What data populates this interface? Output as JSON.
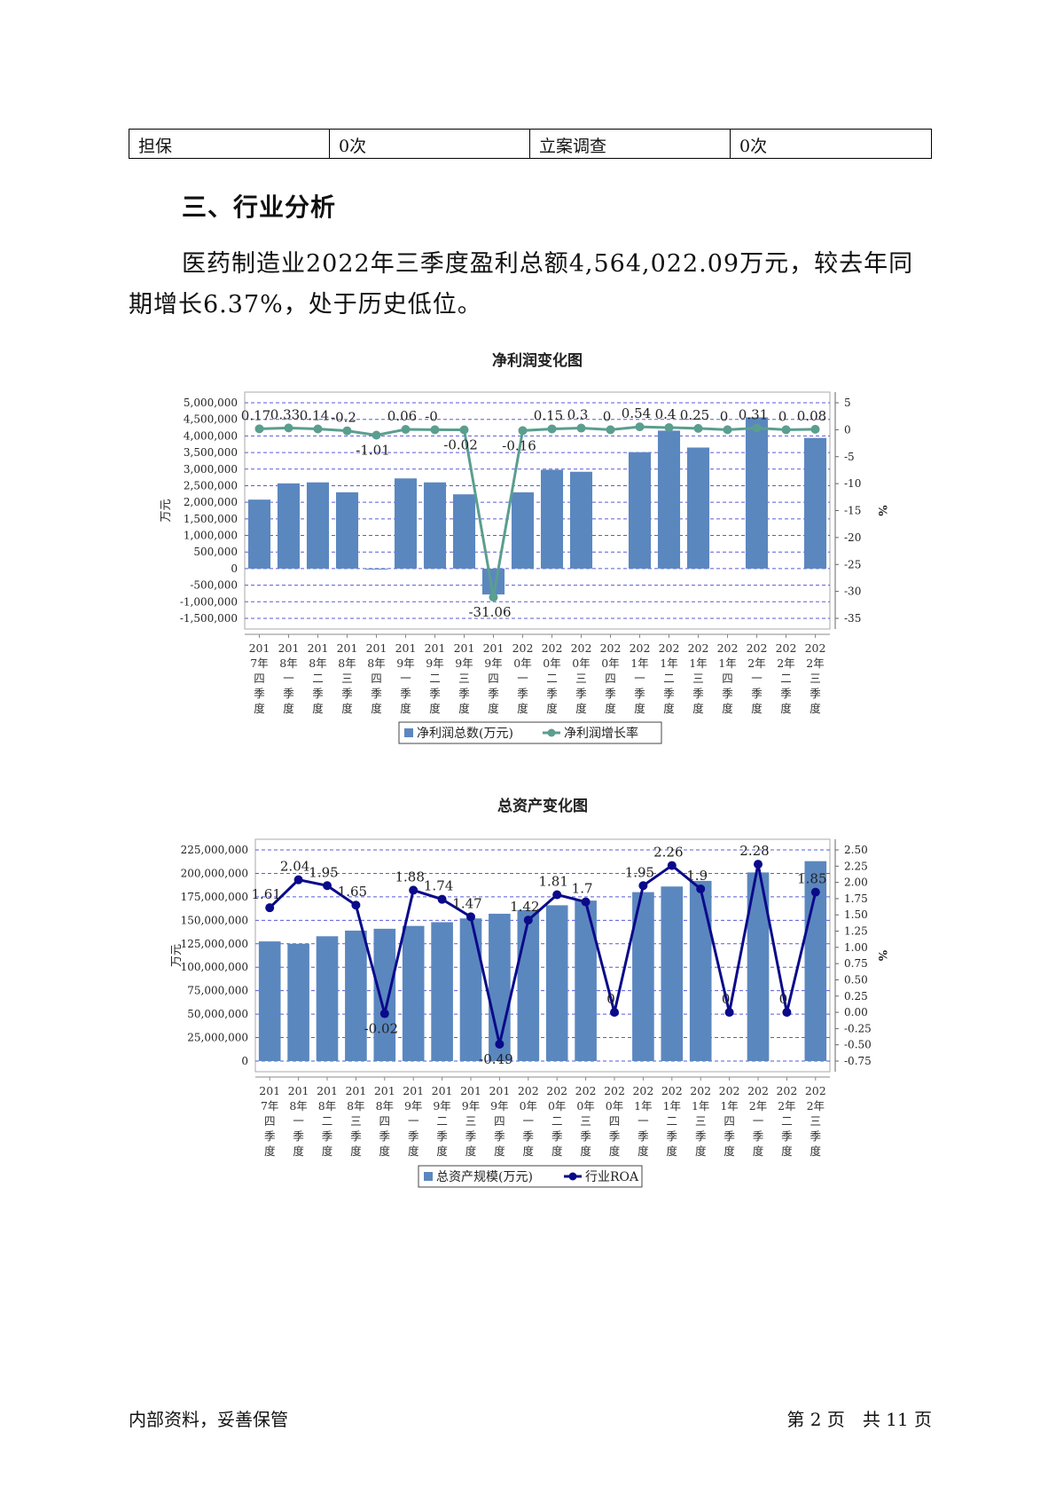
{
  "table": {
    "row": [
      "担保",
      "0次",
      "立案调查",
      "0次"
    ]
  },
  "section_title": "三、行业分析",
  "paragraph": "医药制造业2022年三季度盈利总额4,564,022.09万元，较去年同期增长6.37%，处于历史低位。",
  "footer": {
    "left": "内部资料，妥善保管",
    "right": "第 2 页　共 11 页"
  },
  "chart_data": [
    {
      "type": "bar",
      "title": "净利润变化图",
      "ylabel": "万元",
      "y2label": "%",
      "categories": [
        "2017年四季度",
        "2018年一季度",
        "2018年二季度",
        "2018年三季度",
        "2018年四季度",
        "2019年一季度",
        "2019年二季度",
        "2019年三季度",
        "2019年四季度",
        "2020年一季度",
        "2020年二季度",
        "2020年三季度",
        "2020年四季度",
        "2021年一季度",
        "2021年二季度",
        "2021年三季度",
        "2021年四季度",
        "2022年一季度",
        "2022年二季度",
        "2022年三季度"
      ],
      "series": [
        {
          "name": "净利润总数(万元)",
          "type": "bar",
          "axis": "left",
          "values": [
            2080000,
            2570000,
            2600000,
            2300000,
            -20000,
            2720000,
            2600000,
            2240000,
            -780000,
            2300000,
            2980000,
            2920000,
            0,
            3510000,
            4160000,
            3650000,
            0,
            4560000,
            0,
            3940000
          ]
        },
        {
          "name": "净利润增长率",
          "type": "line",
          "axis": "right",
          "values": [
            0.17,
            0.33,
            0.14,
            -0.2,
            -1.01,
            0.06,
            0,
            -0.02,
            -31.06,
            -0.16,
            0.15,
            0.3,
            0,
            0.54,
            0.4,
            0.25,
            0,
            0.31,
            0,
            0.08
          ]
        }
      ],
      "point_labels": [
        "0.17",
        "0.33",
        "0.14",
        "-0.2",
        "-1.01",
        "0.06",
        "-0",
        "-0.02",
        "-31.06",
        "-0.16",
        "0.15",
        "0.3",
        "0",
        "0.54",
        "0.4",
        "0.25",
        "0",
        "0.31",
        "0",
        "0.08"
      ],
      "ylim": [
        -1500000,
        5000000
      ],
      "y_ticks": [
        "5,000,000",
        "4,500,000",
        "4,000,000",
        "3,500,000",
        "3,000,000",
        "2,500,000",
        "2,000,000",
        "1,500,000",
        "1,000,000",
        "500,000",
        "0",
        "-500,000",
        "-1,000,000",
        "-1,500,000"
      ],
      "y2lim": [
        -35,
        5
      ],
      "y2_ticks": [
        "5",
        "0",
        "-5",
        "-10",
        "-15",
        "-20",
        "-25",
        "-30",
        "-35"
      ],
      "x_ticks": [
        [
          "201",
          "7年",
          "四",
          "季",
          "度"
        ],
        [
          "201",
          "8年",
          "一",
          "季",
          "度"
        ],
        [
          "201",
          "8年",
          "二",
          "季",
          "度"
        ],
        [
          "201",
          "8年",
          "三",
          "季",
          "度"
        ],
        [
          "201",
          "8年",
          "四",
          "季",
          "度"
        ],
        [
          "201",
          "9年",
          "一",
          "季",
          "度"
        ],
        [
          "201",
          "9年",
          "二",
          "季",
          "度"
        ],
        [
          "201",
          "9年",
          "三",
          "季",
          "度"
        ],
        [
          "201",
          "9年",
          "四",
          "季",
          "度"
        ],
        [
          "202",
          "0年",
          "一",
          "季",
          "度"
        ],
        [
          "202",
          "0年",
          "二",
          "季",
          "度"
        ],
        [
          "202",
          "0年",
          "三",
          "季",
          "度"
        ],
        [
          "202",
          "0年",
          "四",
          "季",
          "度"
        ],
        [
          "202",
          "1年",
          "一",
          "季",
          "度"
        ],
        [
          "202",
          "1年",
          "二",
          "季",
          "度"
        ],
        [
          "202",
          "1年",
          "三",
          "季",
          "度"
        ],
        [
          "202",
          "1年",
          "四",
          "季",
          "度"
        ],
        [
          "202",
          "2年",
          "一",
          "季",
          "度"
        ],
        [
          "202",
          "2年",
          "二",
          "季",
          "度"
        ],
        [
          "202",
          "2年",
          "三",
          "季",
          "度"
        ]
      ],
      "legend": [
        "净利润总数(万元)",
        "净利润增长率"
      ],
      "legend_position": "bottom",
      "colors": {
        "bar": "#5b87bf",
        "line": "#5a9e8f",
        "grid": "#5a5ad8"
      },
      "grid": true
    },
    {
      "type": "bar",
      "title": "总资产变化图",
      "ylabel": "万元",
      "y2label": "%",
      "categories": [
        "2017年四季度",
        "2018年一季度",
        "2018年二季度",
        "2018年三季度",
        "2018年四季度",
        "2019年一季度",
        "2019年二季度",
        "2019年三季度",
        "2019年四季度",
        "2020年一季度",
        "2020年二季度",
        "2020年三季度",
        "2020年四季度",
        "2021年一季度",
        "2021年二季度",
        "2021年三季度",
        "2021年四季度",
        "2022年一季度",
        "2022年二季度",
        "2022年三季度"
      ],
      "series": [
        {
          "name": "总资产规模(万元)",
          "type": "bar",
          "axis": "left",
          "values": [
            127500000,
            125000000,
            133000000,
            139000000,
            141000000,
            144000000,
            148000000,
            152000000,
            157000000,
            161000000,
            166000000,
            171000000,
            0,
            180000000,
            186000000,
            192000000,
            0,
            201000000,
            0,
            213000000
          ]
        },
        {
          "name": "行业ROA",
          "type": "line",
          "axis": "right",
          "values": [
            1.61,
            2.04,
            1.95,
            1.65,
            -0.02,
            1.88,
            1.74,
            1.47,
            -0.49,
            1.42,
            1.81,
            1.7,
            0,
            1.95,
            2.26,
            1.9,
            0,
            2.28,
            0,
            1.85
          ]
        }
      ],
      "point_labels": [
        "1.61",
        "2.04",
        "1.95",
        "1.65",
        "-0.02",
        "1.88",
        "1.74",
        "1.47",
        "-0.49",
        "1.42",
        "1.81",
        "1.7",
        "0",
        "1.95",
        "2.26",
        "1.9",
        "0",
        "2.28",
        "0",
        "1.85"
      ],
      "ylim": [
        0,
        225000000
      ],
      "y_ticks": [
        "225,000,000",
        "200,000,000",
        "175,000,000",
        "150,000,000",
        "125,000,000",
        "100,000,000",
        "75,000,000",
        "50,000,000",
        "25,000,000",
        "0"
      ],
      "y2lim": [
        -0.75,
        2.5
      ],
      "y2_ticks": [
        "2.50",
        "2.25",
        "2.00",
        "1.75",
        "1.50",
        "1.25",
        "1.00",
        "0.75",
        "0.50",
        "0.25",
        "0.00",
        "-0.25",
        "-0.50",
        "-0.75"
      ],
      "x_ticks": [
        [
          "201",
          "7年",
          "四",
          "季",
          "度"
        ],
        [
          "201",
          "8年",
          "一",
          "季",
          "度"
        ],
        [
          "201",
          "8年",
          "二",
          "季",
          "度"
        ],
        [
          "201",
          "8年",
          "三",
          "季",
          "度"
        ],
        [
          "201",
          "8年",
          "四",
          "季",
          "度"
        ],
        [
          "201",
          "9年",
          "一",
          "季",
          "度"
        ],
        [
          "201",
          "9年",
          "二",
          "季",
          "度"
        ],
        [
          "201",
          "9年",
          "三",
          "季",
          "度"
        ],
        [
          "201",
          "9年",
          "四",
          "季",
          "度"
        ],
        [
          "202",
          "0年",
          "一",
          "季",
          "度"
        ],
        [
          "202",
          "0年",
          "二",
          "季",
          "度"
        ],
        [
          "202",
          "0年",
          "三",
          "季",
          "度"
        ],
        [
          "202",
          "0年",
          "四",
          "季",
          "度"
        ],
        [
          "202",
          "1年",
          "一",
          "季",
          "度"
        ],
        [
          "202",
          "1年",
          "二",
          "季",
          "度"
        ],
        [
          "202",
          "1年",
          "三",
          "季",
          "度"
        ],
        [
          "202",
          "1年",
          "四",
          "季",
          "度"
        ],
        [
          "202",
          "2年",
          "一",
          "季",
          "度"
        ],
        [
          "202",
          "2年",
          "二",
          "季",
          "度"
        ],
        [
          "202",
          "2年",
          "三",
          "季",
          "度"
        ]
      ],
      "legend": [
        "总资产规模(万元)",
        "行业ROA"
      ],
      "legend_position": "bottom",
      "colors": {
        "bar": "#5b87bf",
        "line": "#0a0a8a",
        "grid": "#5a5ad8"
      },
      "grid": true
    }
  ]
}
